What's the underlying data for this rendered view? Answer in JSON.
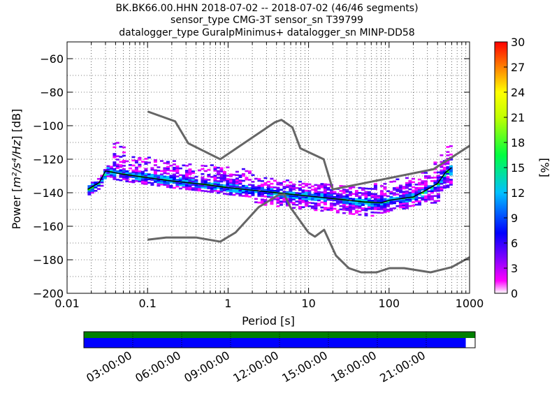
{
  "chart_data": {
    "type": "heatmap",
    "title_lines": [
      "BK.BK66.00.HHN   2018-07-02 -- 2018-07-02  (46/46 segments)",
      "sensor_type CMG-3T sensor_sn T39799",
      "datalogger_type GuralpMinimus+ datalogger_sn MINP-DD58"
    ],
    "xlabel": "Period [s]",
    "ylabel_prefix": "Power [",
    "ylabel_math": "m²/s⁴/Hz",
    "ylabel_suffix": "] [dB]",
    "xscale": "log",
    "xlim": [
      0.01,
      1000
    ],
    "ylim": [
      -200,
      -50
    ],
    "xticks": [
      0.01,
      0.1,
      1,
      10,
      100,
      1000
    ],
    "xtick_labels": [
      "0.01",
      "0.1",
      "1",
      "10",
      "100",
      "1000"
    ],
    "yticks": [
      -60,
      -80,
      -100,
      -120,
      -140,
      -160,
      -180,
      -200
    ],
    "ytick_labels": [
      "−60",
      "−80",
      "−100",
      "−120",
      "−140",
      "−160",
      "−180",
      "−200"
    ],
    "grid": true,
    "colorbar": {
      "label": "[%]",
      "range": [
        0,
        30
      ],
      "ticks": [
        "30",
        "27",
        "24",
        "21",
        "18",
        "15",
        "12",
        "9",
        "6",
        "3",
        "0"
      ]
    },
    "noise_model_high": {
      "period": [
        0.1,
        0.22,
        0.32,
        0.8,
        3.8,
        4.6,
        6.3,
        7.9,
        15.4,
        20,
        354.8,
        1000
      ],
      "db": [
        -91.5,
        -97.4,
        -110.5,
        -120,
        -98,
        -96.5,
        -101,
        -113.5,
        -120,
        -138,
        -126,
        -112
      ]
    },
    "noise_model_low": {
      "period": [
        0.1,
        0.17,
        0.4,
        0.8,
        1.24,
        2.4,
        4.3,
        5,
        6,
        10,
        12,
        15.6,
        21.9,
        31.6,
        45,
        70,
        101,
        154,
        328,
        600,
        1000
      ],
      "db": [
        -168,
        -166.7,
        -166.7,
        -169.2,
        -163.7,
        -148.6,
        -141.1,
        -141.1,
        -149,
        -163.8,
        -166.2,
        -162.1,
        -177.5,
        -185,
        -187.5,
        -187.5,
        -185,
        -185,
        -187.5,
        -184.4,
        -178.5
      ]
    },
    "mean_curve": {
      "period": [
        0.018,
        0.025,
        0.03,
        0.05,
        0.1,
        0.2,
        0.5,
        1,
        2,
        5,
        10,
        20,
        50,
        80,
        100,
        200,
        300,
        400,
        500,
        600
      ],
      "db": [
        -138,
        -134,
        -127,
        -129,
        -131,
        -133,
        -135,
        -137,
        -138.5,
        -140.5,
        -142,
        -143.5,
        -145.5,
        -146,
        -144.5,
        -142.5,
        -138,
        -134.5,
        -128,
        -125
      ]
    },
    "timeline": {
      "tick_labels": [
        "03:00:00",
        "06:00:00",
        "09:00:00",
        "12:00:00",
        "15:00:00",
        "18:00:00",
        "21:00:00"
      ],
      "data_coverage_fraction": 0.976,
      "gaps_bar_color": "#008000",
      "coverage_bar_color": "#0000ff"
    },
    "colors": {
      "noise_model": "#666666",
      "mean": "#000000"
    }
  }
}
